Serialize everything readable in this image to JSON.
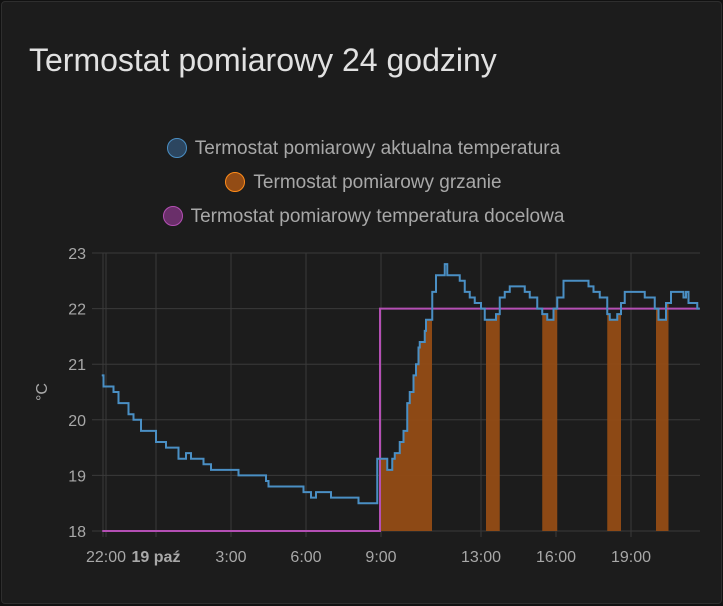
{
  "card": {
    "title": "Termostat pomiarowy 24 godziny"
  },
  "chart_data": {
    "type": "line",
    "title": "Termostat pomiarowy 24 godziny",
    "ylabel": "°C",
    "ylim": [
      18,
      23
    ],
    "yticks": [
      "18",
      "19",
      "20",
      "21",
      "22",
      "23"
    ],
    "xnote": "x in hours since 22:00 of previous day",
    "xticks": [
      {
        "h": 0,
        "label": "22:00",
        "bold": false
      },
      {
        "h": 2,
        "label": "19 paź",
        "bold": true
      },
      {
        "h": 5,
        "label": "3:00",
        "bold": false
      },
      {
        "h": 8,
        "label": "6:00",
        "bold": false
      },
      {
        "h": 11,
        "label": "9:00",
        "bold": false
      },
      {
        "h": 15,
        "label": "13:00",
        "bold": false
      },
      {
        "h": 18,
        "label": "16:00",
        "bold": false
      },
      {
        "h": 21,
        "label": "19:00",
        "bold": false
      }
    ],
    "xrange": [
      -0.15,
      23.75
    ],
    "grid": true,
    "legend_position": "top-center",
    "series": [
      {
        "name": "Termostat pomiarowy aktualna temperatura",
        "color": "#4a8fc4",
        "fill": "#2c4a66",
        "type": "step",
        "points": [
          [
            -0.17,
            20.8
          ],
          [
            -0.1,
            20.6
          ],
          [
            0.3,
            20.5
          ],
          [
            0.5,
            20.3
          ],
          [
            0.9,
            20.1
          ],
          [
            1.1,
            20.0
          ],
          [
            1.4,
            19.8
          ],
          [
            2.0,
            19.6
          ],
          [
            2.4,
            19.5
          ],
          [
            2.9,
            19.3
          ],
          [
            3.2,
            19.4
          ],
          [
            3.4,
            19.3
          ],
          [
            3.9,
            19.2
          ],
          [
            4.2,
            19.1
          ],
          [
            5.3,
            19.0
          ],
          [
            6.4,
            18.9
          ],
          [
            6.5,
            18.8
          ],
          [
            7.9,
            18.7
          ],
          [
            8.2,
            18.6
          ],
          [
            8.4,
            18.7
          ],
          [
            9.0,
            18.6
          ],
          [
            10.1,
            18.5
          ],
          [
            10.85,
            19.3
          ],
          [
            11.25,
            19.1
          ],
          [
            11.45,
            19.3
          ],
          [
            11.55,
            19.4
          ],
          [
            11.75,
            19.6
          ],
          [
            11.9,
            19.8
          ],
          [
            12.05,
            20.3
          ],
          [
            12.15,
            20.5
          ],
          [
            12.3,
            20.8
          ],
          [
            12.4,
            21.0
          ],
          [
            12.5,
            21.3
          ],
          [
            12.55,
            21.4
          ],
          [
            12.75,
            21.6
          ],
          [
            12.8,
            21.8
          ],
          [
            13.05,
            22.3
          ],
          [
            13.2,
            22.6
          ],
          [
            13.55,
            22.8
          ],
          [
            13.65,
            22.6
          ],
          [
            14.15,
            22.5
          ],
          [
            14.35,
            22.3
          ],
          [
            14.55,
            22.2
          ],
          [
            14.75,
            22.1
          ],
          [
            15.0,
            22.0
          ],
          [
            15.15,
            21.8
          ],
          [
            15.6,
            21.9
          ],
          [
            15.75,
            22.2
          ],
          [
            15.95,
            22.3
          ],
          [
            16.15,
            22.4
          ],
          [
            16.75,
            22.3
          ],
          [
            16.95,
            22.2
          ],
          [
            17.25,
            22.0
          ],
          [
            17.45,
            21.9
          ],
          [
            17.65,
            21.8
          ],
          [
            17.9,
            22.0
          ],
          [
            18.05,
            22.2
          ],
          [
            18.3,
            22.5
          ],
          [
            19.3,
            22.4
          ],
          [
            19.5,
            22.3
          ],
          [
            19.75,
            22.2
          ],
          [
            20.05,
            21.9
          ],
          [
            20.15,
            21.8
          ],
          [
            20.45,
            21.9
          ],
          [
            20.6,
            22.1
          ],
          [
            20.75,
            22.3
          ],
          [
            21.55,
            22.2
          ],
          [
            21.95,
            22.0
          ],
          [
            22.1,
            21.8
          ],
          [
            22.4,
            22.1
          ],
          [
            22.6,
            22.3
          ],
          [
            23.1,
            22.2
          ],
          [
            23.2,
            22.3
          ],
          [
            23.3,
            22.1
          ],
          [
            23.65,
            22.0
          ]
        ]
      },
      {
        "name": "Termostat pomiarowy grzanie",
        "color": "#ff8c1a",
        "fill": "#934c15",
        "type": "on-intervals",
        "intervals": [
          [
            10.96,
            13.04
          ],
          [
            15.2,
            15.75
          ],
          [
            17.45,
            18.05
          ],
          [
            20.05,
            20.6
          ],
          [
            22.0,
            22.5
          ]
        ]
      },
      {
        "name": "Termostat pomiarowy temperatura docelowa",
        "color": "#b44fb4",
        "fill": "#6a2f6a",
        "type": "step",
        "points": [
          [
            -0.15,
            18
          ],
          [
            10.96,
            22
          ],
          [
            23.75,
            22
          ]
        ]
      }
    ]
  }
}
